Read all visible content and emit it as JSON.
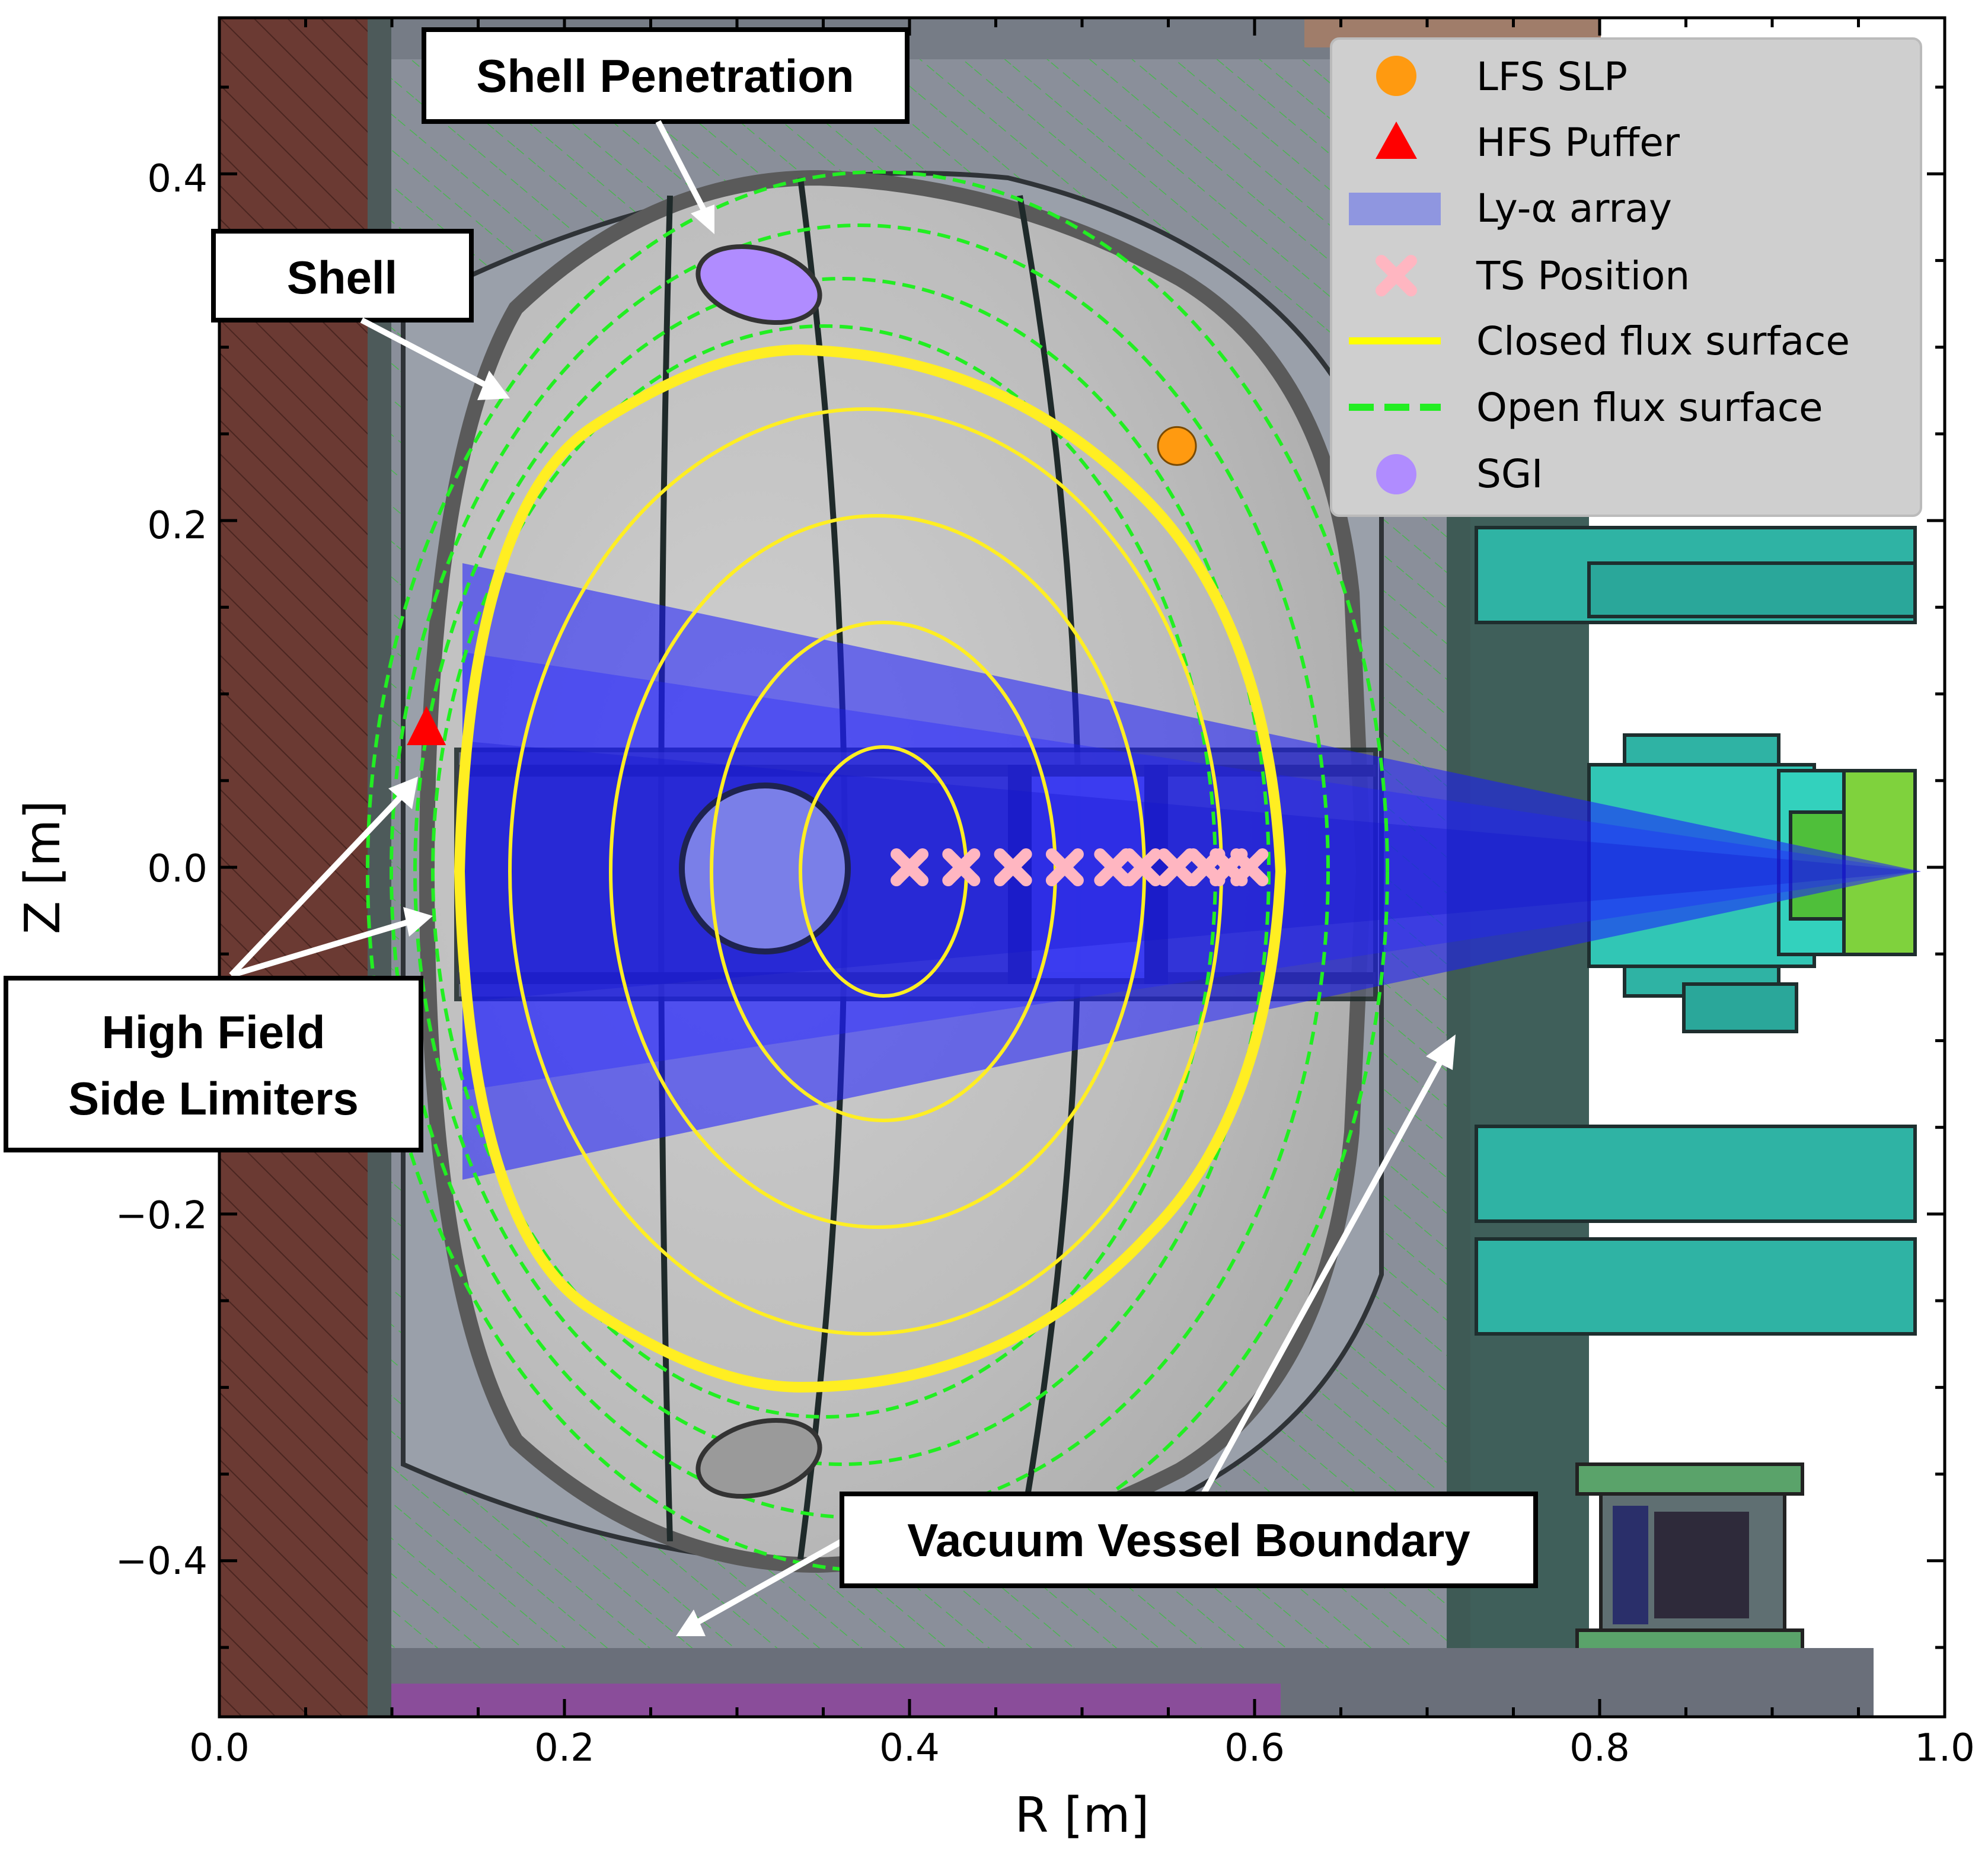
{
  "axes": {
    "xlabel": "R [m]",
    "ylabel": "Z [m]",
    "xlim": [
      0.0,
      1.0
    ],
    "ylim": [
      -0.49,
      0.49
    ],
    "xticks": [
      "0.0",
      "0.2",
      "0.4",
      "0.6",
      "0.8",
      "1.0"
    ],
    "yticks": [
      "0.4",
      "0.2",
      "0.0",
      "−0.2",
      "−0.4"
    ]
  },
  "legend": {
    "placement": "top-right",
    "items": [
      {
        "label": "LFS SLP",
        "marker": "circle",
        "color": "#ff9a10"
      },
      {
        "label": "HFS Puffer",
        "marker": "triangle",
        "color": "#ff0000"
      },
      {
        "label": "Ly-α array",
        "marker": "band",
        "color": "#8f96e0"
      },
      {
        "label": "TS Position",
        "marker": "x",
        "color": "#ffb6c1"
      },
      {
        "label": "Closed flux surface",
        "marker": "solid-line",
        "color": "#ffff00"
      },
      {
        "label": "Open flux surface",
        "marker": "dashed-line",
        "color": "#22ee22"
      },
      {
        "label": "SGI",
        "marker": "circle",
        "color": "#b08cff"
      }
    ]
  },
  "callouts": {
    "shell_penetration": "Shell Penetration",
    "shell": "Shell",
    "hfs_limiters_line1": "High Field",
    "hfs_limiters_line2": "Side Limiters",
    "vacuum_vessel": "Vacuum Vessel Boundary"
  },
  "chart_data": {
    "type": "scatter",
    "xlabel": "R [m]",
    "ylabel": "Z [m]",
    "xlim": [
      0.0,
      1.0
    ],
    "ylim": [
      -0.49,
      0.49
    ],
    "grid": false,
    "legend_placement": "top-right",
    "series": [
      {
        "name": "LFS SLP",
        "points": [
          {
            "x": 0.555,
            "y": 0.243
          }
        ]
      },
      {
        "name": "HFS Puffer",
        "points": [
          {
            "x": 0.12,
            "y": 0.08
          }
        ]
      },
      {
        "name": "TS Position",
        "points": [
          {
            "x": 0.4,
            "y": 0.0
          },
          {
            "x": 0.43,
            "y": 0.0
          },
          {
            "x": 0.46,
            "y": 0.0
          },
          {
            "x": 0.49,
            "y": 0.0
          },
          {
            "x": 0.518,
            "y": 0.0
          },
          {
            "x": 0.535,
            "y": 0.0
          },
          {
            "x": 0.555,
            "y": 0.0
          },
          {
            "x": 0.572,
            "y": 0.0
          },
          {
            "x": 0.585,
            "y": 0.0
          },
          {
            "x": 0.597,
            "y": 0.0
          }
        ]
      },
      {
        "name": "SGI",
        "points": [
          {
            "x": 0.31,
            "y": 0.337
          }
        ]
      },
      {
        "name": "Closed flux surface",
        "center": {
          "x": 0.4,
          "y": 0.0
        },
        "separatrix": {
          "r_min": 0.14,
          "r_max": 0.61,
          "z_max": 0.3,
          "z_min": -0.3
        }
      }
    ]
  }
}
